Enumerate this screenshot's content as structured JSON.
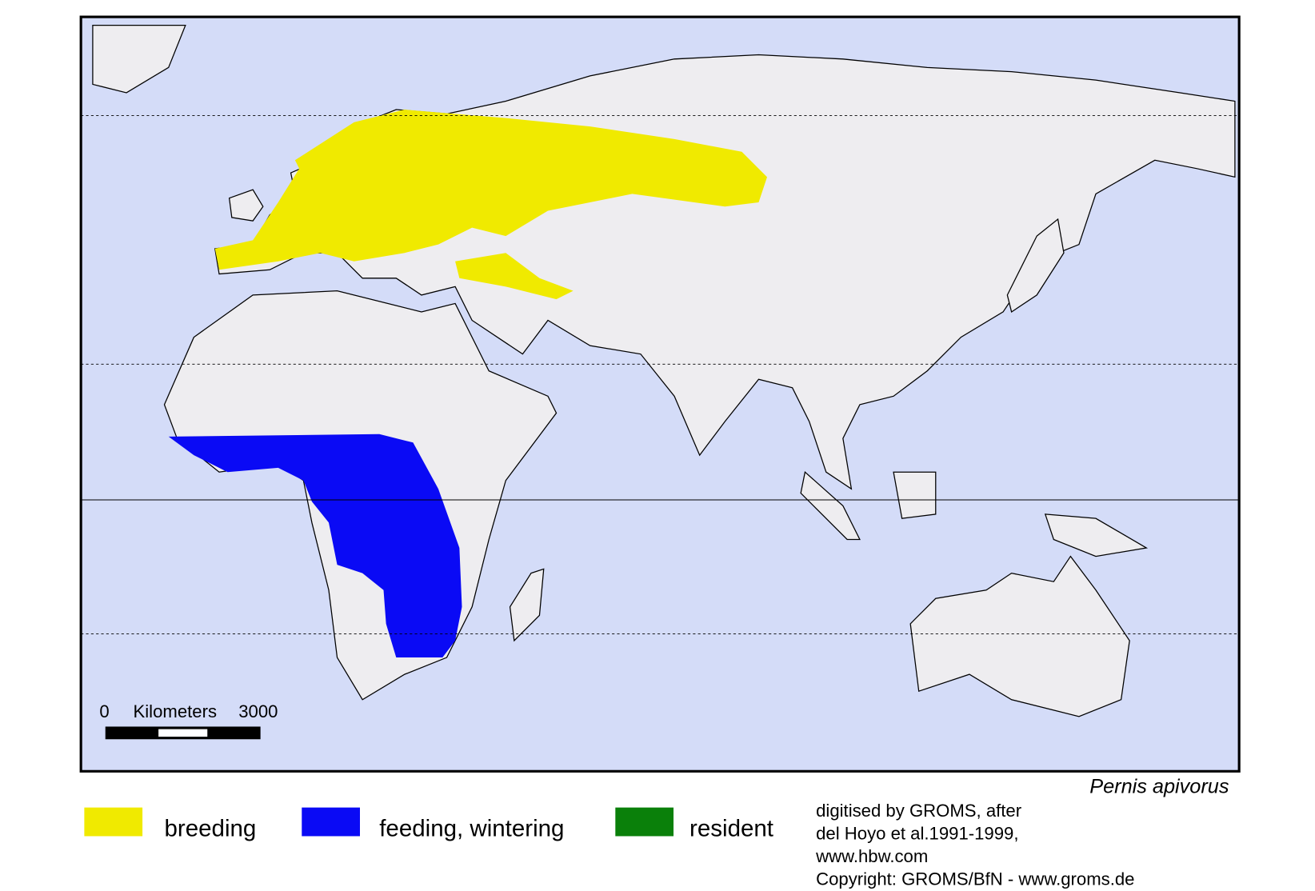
{
  "map": {
    "species": "Pernis apivorus",
    "scale": {
      "start": "0",
      "unit": "Kilometers",
      "end": "3000"
    },
    "legend": [
      {
        "label": "breeding",
        "color": "#f0ea00"
      },
      {
        "label": "feeding, wintering",
        "color": "#0a0af5"
      },
      {
        "label": "resident",
        "color": "#0a800a"
      }
    ],
    "credits": [
      "digitised by GROMS, after",
      "del Hoyo et al.1991-1999,",
      "www.hbw.com",
      "Copyright: GROMS/BfN - www.groms.de"
    ]
  }
}
